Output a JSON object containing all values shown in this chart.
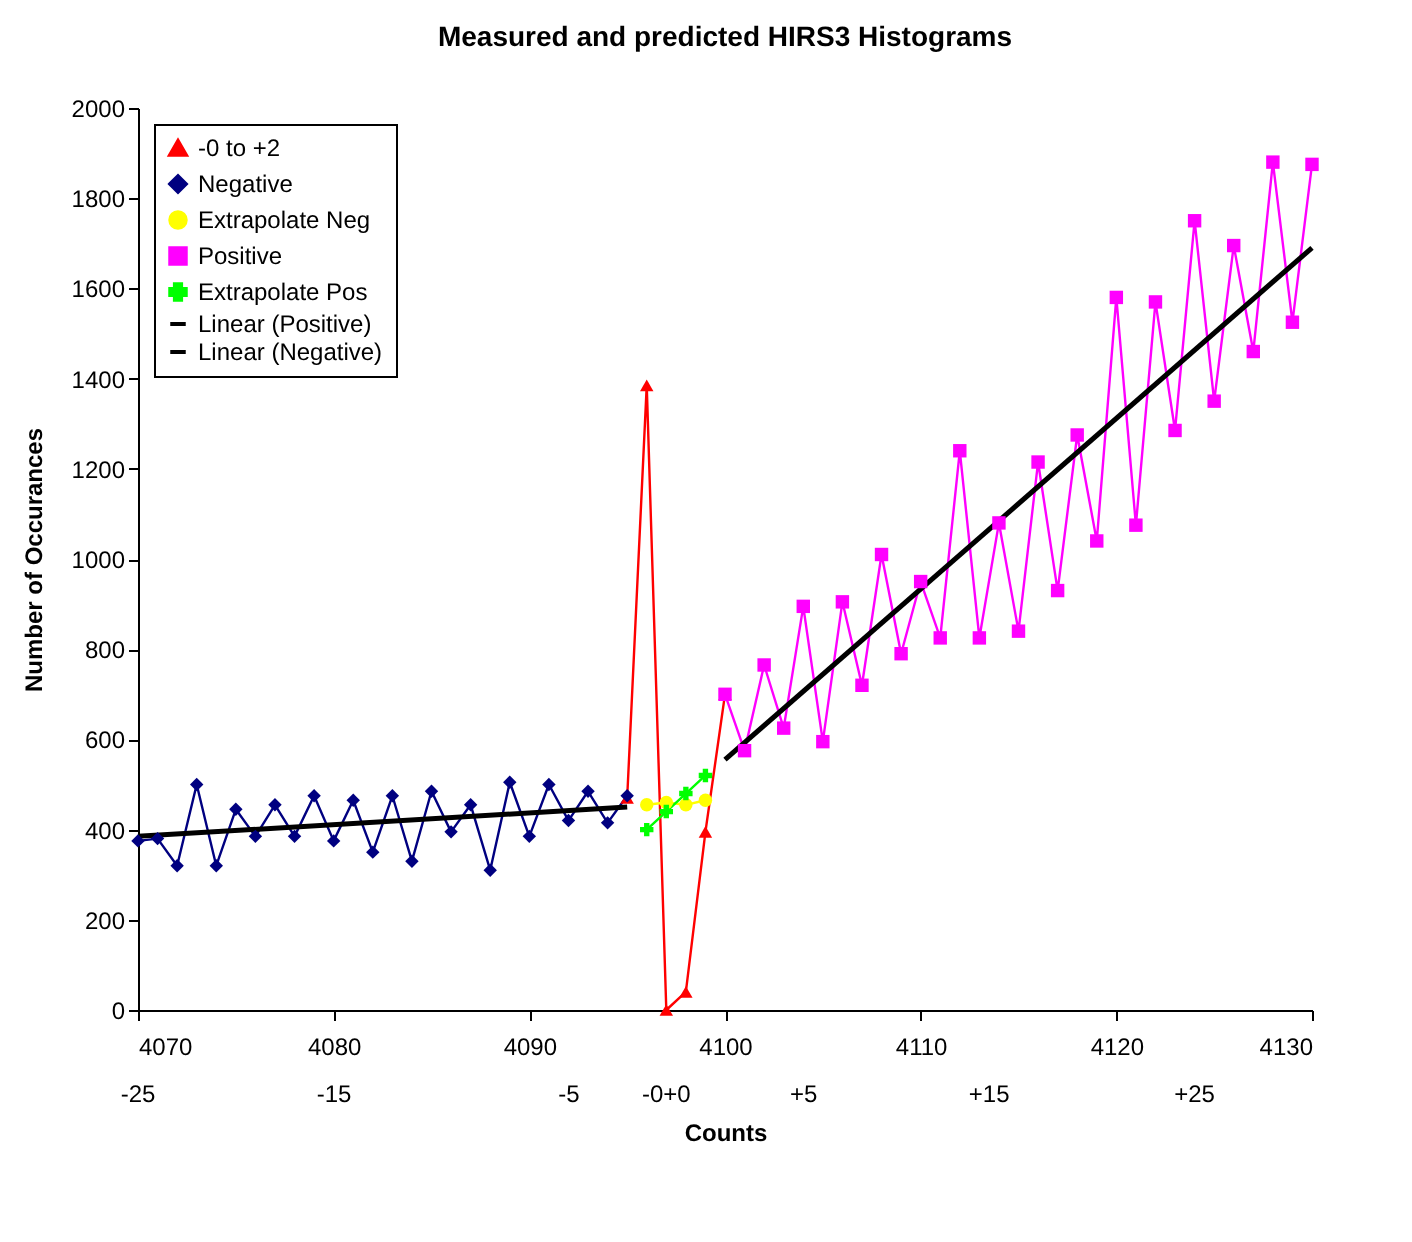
{
  "chart_data": {
    "type": "line",
    "title": "Measured and predicted HIRS3 Histograms",
    "xlabel": "Counts",
    "ylabel": "Number of Occurances",
    "xlim": [
      4070,
      4130
    ],
    "xticks": [
      4070,
      4080,
      4090,
      4100,
      4110,
      4120,
      4130
    ],
    "annotations": [
      "-25",
      "-15",
      "-5",
      "-0+0",
      "+5",
      "+15",
      "+25"
    ],
    "ylim": [
      0,
      2000
    ],
    "yticks": [
      0,
      200,
      400,
      600,
      800,
      1000,
      1200,
      1400,
      1600,
      1800,
      2000
    ],
    "grid": false,
    "legend": "top left",
    "series": [
      {
        "name": "-0 to +2",
        "color": "#ff0000",
        "marker": "triangle",
        "x": [
          4095,
          4096,
          4097,
          4098,
          4099,
          4100
        ],
        "values": [
          470,
          1385,
          0,
          40,
          395,
          700
        ]
      },
      {
        "name": "Negative",
        "color": "#000080",
        "marker": "diamond",
        "x": [
          4070,
          4071,
          4072,
          4073,
          4074,
          4075,
          4076,
          4077,
          4078,
          4079,
          4080,
          4081,
          4082,
          4083,
          4084,
          4085,
          4086,
          4087,
          4088,
          4089,
          4090,
          4091,
          4092,
          4093,
          4094,
          4095
        ],
        "values": [
          375,
          380,
          320,
          500,
          320,
          445,
          385,
          455,
          385,
          475,
          375,
          465,
          350,
          475,
          330,
          485,
          395,
          455,
          310,
          505,
          385,
          500,
          420,
          485,
          415,
          475
        ]
      },
      {
        "name": "Extrapolate Neg",
        "color": "#ffff00",
        "marker": "circle",
        "x": [
          4096,
          4097,
          4098,
          4099
        ],
        "values": [
          455,
          460,
          455,
          465
        ]
      },
      {
        "name": "Positive",
        "color": "#ff00ff",
        "marker": "square",
        "x": [
          4100,
          4101,
          4102,
          4103,
          4104,
          4105,
          4106,
          4107,
          4108,
          4109,
          4110,
          4111,
          4112,
          4113,
          4114,
          4115,
          4116,
          4117,
          4118,
          4119,
          4120,
          4121,
          4122,
          4123,
          4124,
          4125,
          4126,
          4127,
          4128,
          4129,
          4130
        ],
        "values": [
          700,
          575,
          765,
          625,
          895,
          595,
          905,
          720,
          1010,
          790,
          950,
          825,
          1240,
          825,
          1080,
          840,
          1215,
          930,
          1275,
          1040,
          1580,
          1075,
          1570,
          1285,
          1750,
          1350,
          1695,
          1460,
          1880,
          1525,
          1875
        ]
      },
      {
        "name": "Extrapolate Pos",
        "color": "#00ff00",
        "marker": "cross",
        "x": [
          4096,
          4097,
          4098,
          4099
        ],
        "values": [
          400,
          440,
          480,
          520
        ]
      },
      {
        "name": "Linear (Positive)",
        "color": "#000000",
        "marker": "none",
        "x": [
          4100,
          4130
        ],
        "values": [
          555,
          1690
        ]
      },
      {
        "name": "Linear (Negative)",
        "color": "#000000",
        "marker": "none",
        "x": [
          4070,
          4095
        ],
        "values": [
          385,
          450
        ]
      }
    ]
  }
}
